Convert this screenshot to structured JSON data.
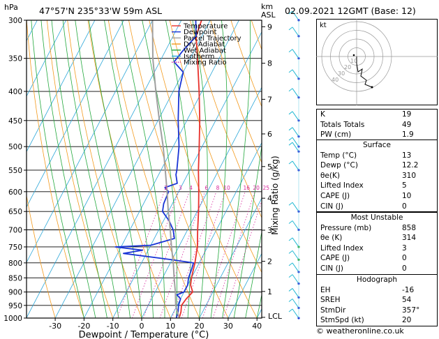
{
  "header": {
    "location": "47°57'N  235°33'W  59m  ASL",
    "date": "02.09.2021  12GMT  (Base: 12)",
    "p_unit": "hPa",
    "km_unit": "km",
    "asl": "ASL"
  },
  "chart_data": {
    "type": "line",
    "title": "47°57'N  235°33'W  59m  ASL",
    "xlabel": "Dewpoint / Temperature (°C)",
    "ylabel": "hPa",
    "right_label": "Mixing Ratio (g/kg)",
    "x_ticks": [
      -30,
      -20,
      -10,
      0,
      10,
      20,
      30,
      40
    ],
    "xlim": [
      -35,
      40
    ],
    "p_levels": [
      300,
      350,
      400,
      450,
      500,
      550,
      600,
      650,
      700,
      750,
      800,
      850,
      900,
      950,
      1000
    ],
    "ylim": [
      1000,
      300
    ],
    "km_ticks": [
      {
        "label": "9",
        "p": 308
      },
      {
        "label": "8",
        "p": 357
      },
      {
        "label": "7",
        "p": 413
      },
      {
        "label": "6",
        "p": 475
      },
      {
        "label": "5",
        "p": 542
      },
      {
        "label": "4",
        "p": 616
      },
      {
        "label": "3",
        "p": 701
      },
      {
        "label": "2",
        "p": 795
      },
      {
        "label": "1",
        "p": 898
      }
    ],
    "lcl": {
      "label": "LCL",
      "p": 997
    },
    "mixing_ratio_labels": [
      "2",
      "3",
      "4",
      "6",
      "8",
      "10",
      "16",
      "20",
      "25"
    ],
    "mixing_ratio_label_p": 590,
    "legend": [
      {
        "name": "Temperature",
        "color": "#e8312c",
        "dash": false
      },
      {
        "name": "Dewpoint",
        "color": "#1a35d6",
        "dash": false
      },
      {
        "name": "Parcel Trajectory",
        "color": "#a0a0a0",
        "dash": false
      },
      {
        "name": "Dry Adiabat",
        "color": "#f39a1d",
        "dash": false
      },
      {
        "name": "Wet Adiabat",
        "color": "#22a83c",
        "dash": false
      },
      {
        "name": "Isotherm",
        "color": "#2aa6d8",
        "dash": false
      },
      {
        "name": "Mixing Ratio",
        "color": "#d7279c",
        "dash": true
      }
    ],
    "series": [
      {
        "name": "Temperature",
        "color": "#e8312c",
        "points": [
          [
            1000,
            13
          ],
          [
            975,
            12.5
          ],
          [
            950,
            11.5
          ],
          [
            925,
            12
          ],
          [
            900,
            13
          ],
          [
            875,
            11
          ],
          [
            850,
            10
          ],
          [
            800,
            8.5
          ],
          [
            775,
            7.5
          ],
          [
            750,
            6.5
          ],
          [
            725,
            5
          ],
          [
            700,
            3.5
          ],
          [
            650,
            0.5
          ],
          [
            600,
            -3
          ],
          [
            550,
            -7
          ],
          [
            500,
            -11
          ],
          [
            450,
            -15.5
          ],
          [
            400,
            -21
          ],
          [
            350,
            -27.5
          ],
          [
            320,
            -32
          ],
          [
            300,
            -33
          ]
        ]
      },
      {
        "name": "Dewpoint",
        "color": "#1a35d6",
        "points": [
          [
            1000,
            12
          ],
          [
            975,
            11.5
          ],
          [
            950,
            10.5
          ],
          [
            925,
            10
          ],
          [
            910,
            8
          ],
          [
            900,
            10
          ],
          [
            875,
            10
          ],
          [
            850,
            9
          ],
          [
            820,
            8.5
          ],
          [
            800,
            8
          ],
          [
            790,
            0
          ],
          [
            770,
            -18
          ],
          [
            760,
            -12
          ],
          [
            750,
            -22
          ],
          [
            745,
            -10
          ],
          [
            725,
            -3
          ],
          [
            700,
            -5
          ],
          [
            675,
            -8
          ],
          [
            650,
            -12
          ],
          [
            630,
            -13
          ],
          [
            600,
            -13.5
          ],
          [
            590,
            -15.5
          ],
          [
            580,
            -12
          ],
          [
            560,
            -14
          ],
          [
            550,
            -14.5
          ],
          [
            500,
            -18
          ],
          [
            450,
            -23
          ],
          [
            400,
            -28
          ],
          [
            370,
            -30
          ],
          [
            355,
            -35
          ],
          [
            340,
            -34
          ],
          [
            320,
            -32
          ],
          [
            300,
            -35
          ]
        ]
      },
      {
        "name": "Parcel Trajectory",
        "color": "#a0a0a0",
        "points": [
          [
            1000,
            13
          ],
          [
            950,
            9.5
          ],
          [
            900,
            7
          ],
          [
            850,
            4
          ],
          [
            800,
            1
          ],
          [
            750,
            -2.5
          ],
          [
            700,
            -6
          ],
          [
            650,
            -10
          ],
          [
            600,
            -14
          ],
          [
            550,
            -18.5
          ],
          [
            500,
            -23.5
          ],
          [
            450,
            -29.5
          ],
          [
            400,
            -36
          ],
          [
            350,
            -43
          ],
          [
            300,
            -50
          ]
        ]
      }
    ],
    "grid": true
  },
  "hodograph": {
    "label": "kt",
    "ring_labels": [
      "10",
      "20",
      "30",
      "40"
    ]
  },
  "indices": [
    {
      "label": "K",
      "value": "19"
    },
    {
      "label": "Totals Totals",
      "value": "49"
    },
    {
      "label": "PW (cm)",
      "value": "1.9"
    }
  ],
  "surface": {
    "title": "Surface",
    "rows": [
      {
        "label": "Temp (°C)",
        "value": "13"
      },
      {
        "label": "Dewp (°C)",
        "value": "12.2"
      },
      {
        "label": "θe(K)",
        "value": "310"
      },
      {
        "label": "Lifted Index",
        "value": "5"
      },
      {
        "label": "CAPE (J)",
        "value": "10"
      },
      {
        "label": "CIN (J)",
        "value": "0"
      }
    ]
  },
  "most_unstable": {
    "title": "Most Unstable",
    "rows": [
      {
        "label": "Pressure (mb)",
        "value": "858"
      },
      {
        "label": "θe (K)",
        "value": "314"
      },
      {
        "label": "Lifted Index",
        "value": "3"
      },
      {
        "label": "CAPE (J)",
        "value": "0"
      },
      {
        "label": "CIN (J)",
        "value": "0"
      }
    ]
  },
  "hodograph_table": {
    "title": "Hodograph",
    "rows": [
      {
        "label": "EH",
        "value": "-16"
      },
      {
        "label": "SREH",
        "value": "54"
      },
      {
        "label": "StmDir",
        "value": "357°"
      },
      {
        "label": "StmSpd (kt)",
        "value": "20"
      }
    ]
  },
  "footer": "© weatheronline.co.uk",
  "colors": {
    "frame": "#000000",
    "background": "#ffffff",
    "barb": "#22b9d3",
    "barb_tip": "#1a35d6"
  }
}
